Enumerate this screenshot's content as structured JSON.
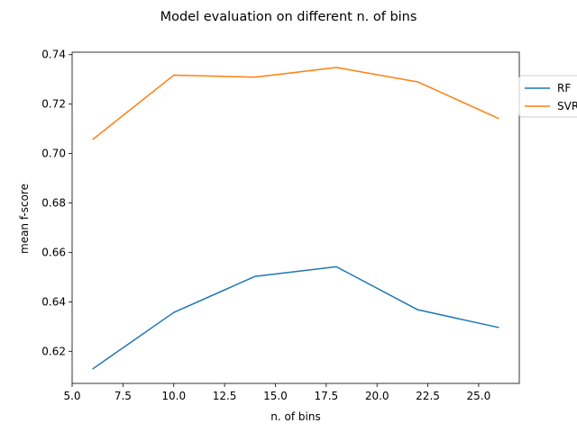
{
  "chart_data": {
    "type": "line",
    "title": "Model evaluation on different n. of bins",
    "xlabel": "n. of bins",
    "ylabel": "mean f-score",
    "xlim": [
      5.0,
      27.0
    ],
    "ylim": [
      0.607,
      0.741
    ],
    "xticks": [
      5.0,
      7.5,
      10.0,
      12.5,
      15.0,
      17.5,
      20.0,
      22.5,
      25.0
    ],
    "xtick_labels": [
      "5.0",
      "7.5",
      "10.0",
      "12.5",
      "15.0",
      "17.5",
      "20.0",
      "22.5",
      "25.0"
    ],
    "yticks": [
      0.62,
      0.64,
      0.66,
      0.68,
      0.7,
      0.72,
      0.74
    ],
    "ytick_labels": [
      "0.62",
      "0.64",
      "0.66",
      "0.68",
      "0.70",
      "0.72",
      "0.74"
    ],
    "x": [
      6,
      10,
      14,
      18,
      22,
      26
    ],
    "series": [
      {
        "name": "RF",
        "color": "#1f77b4",
        "values": [
          0.6128,
          0.6357,
          0.6503,
          0.6542,
          0.6368,
          0.6296
        ]
      },
      {
        "name": "SVR",
        "color": "#ff7f0e",
        "values": [
          0.7056,
          0.7317,
          0.7309,
          0.7348,
          0.729,
          0.7141
        ]
      }
    ],
    "grid": false,
    "legend": "right"
  }
}
